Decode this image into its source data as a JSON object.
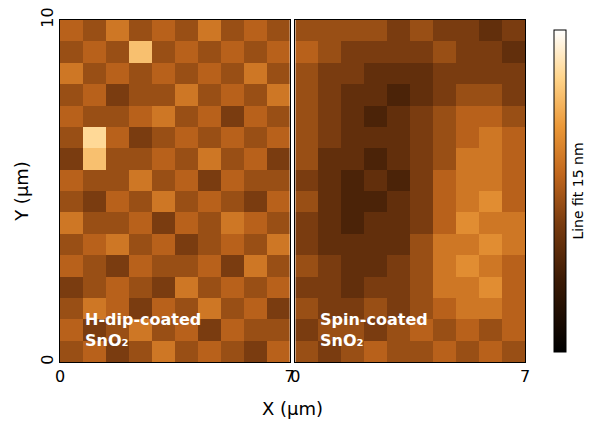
{
  "chart_data": {
    "type": "heatmap",
    "xlabel": "X (µm)",
    "ylabel": "Y (µm)",
    "colorbar": {
      "title": "Line fit 15 nm",
      "range": [
        0,
        15
      ]
    },
    "panels": [
      {
        "label": "H-dip-coated SnO₂",
        "xlim": [
          0,
          7
        ],
        "ylim": [
          0,
          10
        ],
        "xticks": [
          0,
          7
        ],
        "yticks": [
          0,
          10
        ],
        "x": [
          0.35,
          1.05,
          1.75,
          2.45,
          3.15,
          3.85,
          4.55,
          5.25,
          5.95,
          6.65
        ],
        "y": [
          0.3125,
          0.9375,
          1.5625,
          2.1875,
          2.8125,
          3.4375,
          4.0625,
          4.6875,
          5.3125,
          5.9375,
          6.5625,
          7.1875,
          7.8125,
          8.4375,
          9.0625,
          9.6875
        ],
        "z": [
          [
            7,
            8,
            6,
            7,
            9,
            7,
            8,
            7,
            6,
            8
          ],
          [
            8,
            6,
            7,
            9,
            7,
            8,
            6,
            8,
            7,
            7
          ],
          [
            7,
            9,
            8,
            6,
            8,
            7,
            9,
            7,
            8,
            6
          ],
          [
            6,
            7,
            8,
            7,
            6,
            9,
            7,
            8,
            7,
            8
          ],
          [
            8,
            7,
            6,
            8,
            7,
            7,
            8,
            6,
            9,
            7
          ],
          [
            7,
            8,
            9,
            7,
            8,
            6,
            7,
            8,
            7,
            9
          ],
          [
            9,
            7,
            7,
            8,
            6,
            8,
            7,
            9,
            8,
            7
          ],
          [
            7,
            6,
            8,
            7,
            9,
            7,
            8,
            7,
            6,
            8
          ],
          [
            8,
            7,
            7,
            9,
            7,
            8,
            6,
            8,
            7,
            7
          ],
          [
            6,
            12,
            7,
            7,
            8,
            7,
            9,
            7,
            8,
            6
          ],
          [
            7,
            13,
            8,
            6,
            7,
            8,
            7,
            8,
            7,
            8
          ],
          [
            8,
            7,
            7,
            8,
            9,
            7,
            8,
            6,
            8,
            7
          ],
          [
            7,
            8,
            6,
            7,
            7,
            9,
            7,
            8,
            7,
            9
          ],
          [
            9,
            7,
            8,
            7,
            8,
            7,
            8,
            7,
            9,
            7
          ],
          [
            7,
            8,
            7,
            12,
            7,
            8,
            7,
            8,
            7,
            8
          ],
          [
            8,
            7,
            9,
            7,
            8,
            7,
            9,
            7,
            8,
            7
          ]
        ]
      },
      {
        "label": "Spin-coated SnO₂",
        "xlim": [
          0,
          7
        ],
        "ylim": [
          0,
          10
        ],
        "xticks": [
          0,
          7
        ],
        "yticks": [
          0,
          10
        ],
        "tick_labels": "x",
        "x": [
          0.35,
          1.05,
          1.75,
          2.45,
          3.15,
          3.85,
          4.55,
          5.25,
          5.95,
          6.65
        ],
        "y": [
          0.3125,
          0.9375,
          1.5625,
          2.1875,
          2.8125,
          3.4375,
          4.0625,
          4.6875,
          5.3125,
          5.9375,
          6.5625,
          7.1875,
          7.8125,
          8.4375,
          9.0625,
          9.6875
        ],
        "z": [
          [
            7,
            6,
            7,
            8,
            7,
            7,
            8,
            7,
            8,
            7
          ],
          [
            6,
            7,
            7,
            6,
            7,
            8,
            7,
            8,
            7,
            8
          ],
          [
            7,
            6,
            6,
            7,
            6,
            7,
            8,
            9,
            9,
            8
          ],
          [
            6,
            6,
            5,
            6,
            6,
            7,
            9,
            9,
            10,
            8
          ],
          [
            7,
            6,
            5,
            5,
            6,
            7,
            9,
            10,
            9,
            8
          ],
          [
            6,
            5,
            5,
            5,
            5,
            7,
            9,
            9,
            10,
            9
          ],
          [
            6,
            5,
            4,
            5,
            5,
            6,
            8,
            10,
            9,
            9
          ],
          [
            7,
            5,
            4,
            4,
            5,
            6,
            8,
            9,
            10,
            8
          ],
          [
            6,
            5,
            4,
            5,
            4,
            6,
            8,
            9,
            9,
            8
          ],
          [
            7,
            5,
            5,
            4,
            5,
            6,
            7,
            9,
            9,
            8
          ],
          [
            7,
            6,
            5,
            5,
            5,
            6,
            7,
            8,
            9,
            8
          ],
          [
            7,
            6,
            5,
            4,
            5,
            6,
            7,
            8,
            8,
            7
          ],
          [
            7,
            6,
            5,
            5,
            4,
            5,
            6,
            7,
            7,
            6
          ],
          [
            7,
            6,
            6,
            5,
            5,
            5,
            6,
            6,
            6,
            6
          ],
          [
            8,
            7,
            6,
            6,
            6,
            6,
            7,
            6,
            6,
            5
          ],
          [
            7,
            7,
            7,
            7,
            6,
            7,
            6,
            6,
            5,
            6
          ]
        ]
      }
    ]
  }
}
